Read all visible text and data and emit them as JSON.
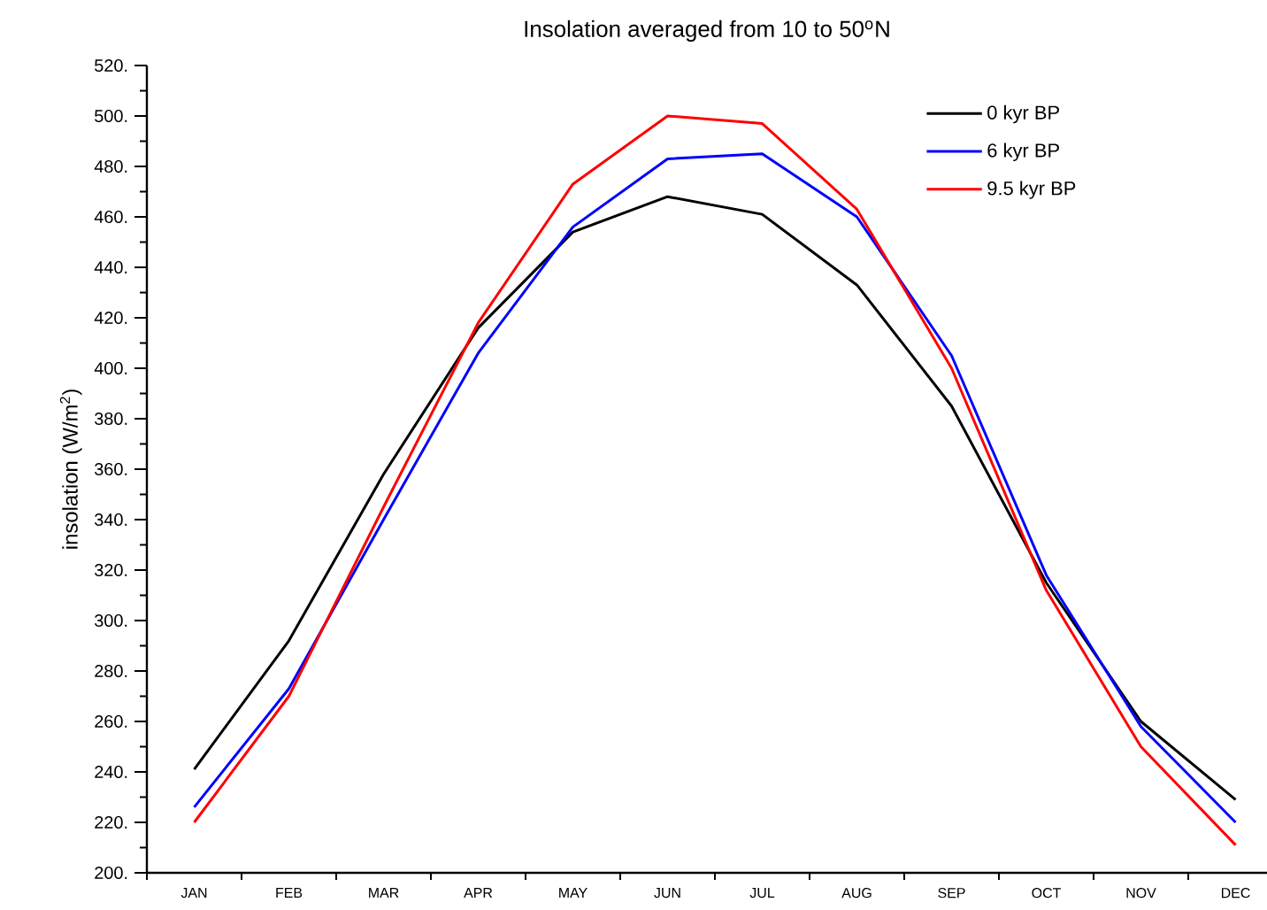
{
  "chart_data": {
    "type": "line",
    "title": "Insolation averaged from 10 to 50$^{o}$N",
    "ylabel": "insolation (W/m$^{2}$)",
    "categories": [
      "JAN",
      "FEB",
      "MAR",
      "APR",
      "MAY",
      "JUN",
      "JUL",
      "AUG",
      "SEP",
      "OCT",
      "NOV",
      "DEC"
    ],
    "series": [
      {
        "name": "0 kyr BP",
        "color": "#000000",
        "values": [
          241,
          292,
          358,
          416,
          454,
          468,
          461,
          433,
          385,
          315,
          260,
          229
        ]
      },
      {
        "name": "6 kyr BP",
        "color": "#0000ff",
        "values": [
          226,
          273,
          340,
          406,
          456,
          483,
          485,
          460,
          405,
          318,
          258,
          220
        ]
      },
      {
        "name": "9.5 kyr BP",
        "color": "#ff0000",
        "values": [
          220,
          270,
          345,
          418,
          473,
          500,
          497,
          463,
          400,
          312,
          250,
          211
        ]
      }
    ],
    "ylim": [
      200,
      520
    ],
    "yticks": [
      {
        "value": 200,
        "label": "200."
      },
      {
        "value": 220,
        "label": "220."
      },
      {
        "value": 240,
        "label": "240."
      },
      {
        "value": 260,
        "label": "260."
      },
      {
        "value": 280,
        "label": "280."
      },
      {
        "value": 300,
        "label": "300."
      },
      {
        "value": 320,
        "label": "320."
      },
      {
        "value": 340,
        "label": "340."
      },
      {
        "value": 360,
        "label": "360."
      },
      {
        "value": 380,
        "label": "380."
      },
      {
        "value": 400,
        "label": "400."
      },
      {
        "value": 420,
        "label": "420."
      },
      {
        "value": 440,
        "label": "440."
      },
      {
        "value": 460,
        "label": "460."
      },
      {
        "value": 480,
        "label": "480."
      },
      {
        "value": 500,
        "label": "500."
      },
      {
        "value": 520,
        "label": "520."
      }
    ],
    "legend": "top right",
    "marker": "none",
    "line_style": "solid"
  }
}
